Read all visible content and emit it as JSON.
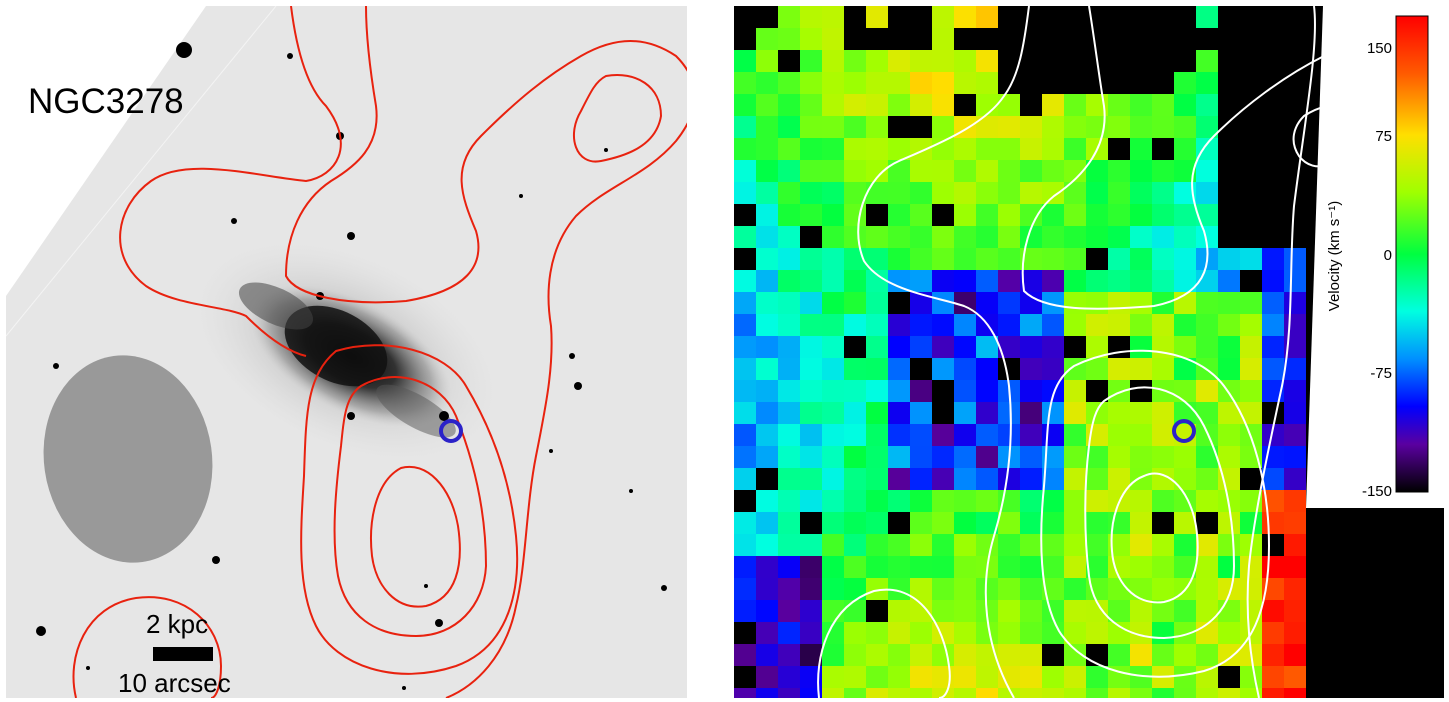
{
  "left_image": {
    "galaxy_name": "NGC3278",
    "scale_bar": {
      "kpc_label": "2 kpc",
      "arcsec_label": "10 arcsec"
    },
    "contour_color": "#e8220f",
    "marker_color": "#2b22c8",
    "beam_color": "#999999"
  },
  "right_image": {
    "contour_color": "#ffffff",
    "marker_color": "#2b22c8",
    "colorbar": {
      "title": "Velocity (km s⁻¹)",
      "ticks": [
        "150",
        "75",
        "0",
        "-75",
        "-150"
      ],
      "min": -150,
      "max": 150,
      "colormap": "jet-with-black-low"
    }
  }
}
